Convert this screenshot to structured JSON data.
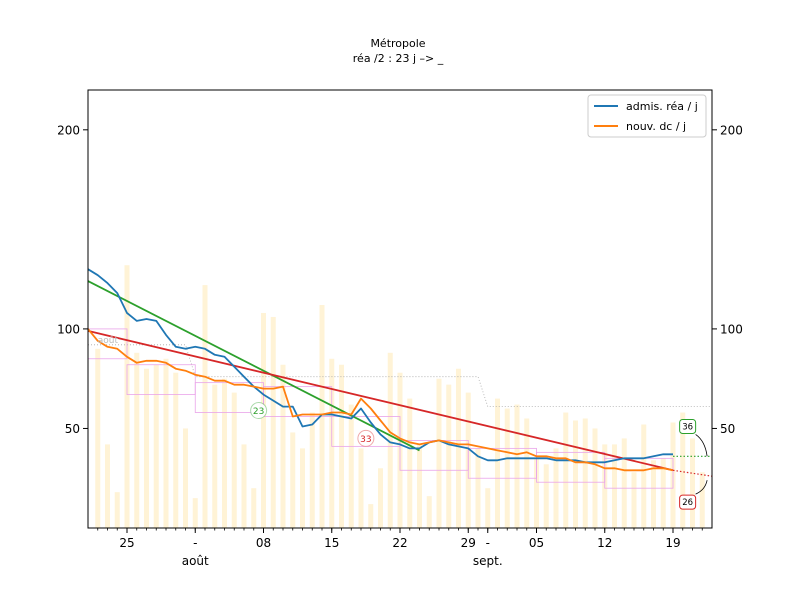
{
  "chart_data": {
    "type": "line",
    "title": "Métropole",
    "subtitle": "réa /2 : 23 j –> _",
    "xlabel": "",
    "ylabel": "",
    "x_range": [
      -17,
      47
    ],
    "ylim": [
      0,
      220
    ],
    "x_ticks": [
      {
        "x": -13,
        "label": "25"
      },
      {
        "x": -6,
        "label": "-"
      },
      {
        "x": 1,
        "label": "08"
      },
      {
        "x": 8,
        "label": "15"
      },
      {
        "x": 15,
        "label": "22"
      },
      {
        "x": 22,
        "label": "29"
      },
      {
        "x": 24,
        "label": "-"
      },
      {
        "x": 29,
        "label": "05"
      },
      {
        "x": 36,
        "label": "12"
      },
      {
        "x": 43,
        "label": "19"
      }
    ],
    "month_labels": [
      {
        "x": -6,
        "label": "août"
      },
      {
        "x": 24,
        "label": "sept."
      }
    ],
    "y_ticks": [
      {
        "y": 50,
        "label": "50"
      },
      {
        "y": 100,
        "label": "100"
      },
      {
        "y": 200,
        "label": "200"
      }
    ],
    "legend": {
      "position": "top-right",
      "entries": [
        {
          "label": "admis. réa / j",
          "color": "#1f77b4"
        },
        {
          "label": "nouv. dc / j",
          "color": "#ff7f0e"
        }
      ]
    },
    "bars": {
      "color": "#fff3d6",
      "x": [
        -16,
        -15,
        -14,
        -13,
        -12,
        -11,
        -10,
        -9,
        -8,
        -7,
        -6,
        -5,
        -4,
        -3,
        -2,
        -1,
        0,
        1,
        2,
        3,
        4,
        5,
        6,
        7,
        8,
        9,
        10,
        11,
        12,
        13,
        14,
        15,
        16,
        17,
        18,
        19,
        20,
        21,
        22,
        23,
        24,
        25,
        26,
        27,
        28,
        29,
        30,
        31,
        32,
        33,
        34,
        35,
        36,
        37,
        38,
        39,
        40,
        41,
        42,
        43,
        44,
        45,
        46
      ],
      "values": [
        90,
        42,
        18,
        132,
        88,
        80,
        82,
        85,
        78,
        50,
        15,
        122,
        72,
        75,
        68,
        42,
        20,
        108,
        106,
        82,
        48,
        40,
        58,
        112,
        85,
        82,
        62,
        40,
        12,
        30,
        88,
        78,
        65,
        42,
        16,
        75,
        72,
        80,
        68,
        40,
        20,
        65,
        60,
        62,
        55,
        35,
        32,
        40,
        58,
        54,
        55,
        50,
        42,
        42,
        45,
        28,
        52,
        34,
        35,
        53,
        58,
        45,
        28
      ]
    },
    "series": [
      {
        "name": "admis. réa / j",
        "color": "#1f77b4",
        "x": [
          -17,
          -16,
          -15,
          -14,
          -13,
          -12,
          -11,
          -10,
          -9,
          -8,
          -7,
          -6,
          -5,
          -4,
          -3,
          -2,
          -1,
          0,
          1,
          2,
          3,
          4,
          5,
          6,
          7,
          8,
          9,
          10,
          11,
          12,
          13,
          14,
          15,
          16,
          17,
          18,
          19,
          20,
          21,
          22,
          23,
          24,
          25,
          26,
          27,
          28,
          29,
          30,
          31,
          32,
          33,
          34,
          35,
          36,
          37,
          38,
          39,
          40,
          41,
          42,
          43
        ],
        "values": [
          130,
          127,
          123,
          118,
          108,
          104,
          105,
          104,
          97,
          91,
          90,
          91,
          90,
          87,
          86,
          81,
          76,
          71,
          67,
          64,
          61,
          61,
          51,
          52,
          57,
          57,
          56,
          55,
          60,
          53,
          47,
          43,
          42,
          40,
          40,
          43,
          44,
          42,
          41,
          40,
          36,
          34,
          34,
          35,
          35,
          35,
          35,
          35,
          34,
          34,
          34,
          33,
          33,
          33,
          34,
          35,
          35,
          35,
          36,
          37,
          37
        ]
      },
      {
        "name": "nouv. dc / j",
        "color": "#ff7f0e",
        "x": [
          -17,
          -16,
          -15,
          -14,
          -13,
          -12,
          -11,
          -10,
          -9,
          -8,
          -7,
          -6,
          -5,
          -4,
          -3,
          -2,
          -1,
          0,
          1,
          2,
          3,
          4,
          5,
          6,
          7,
          8,
          9,
          10,
          11,
          12,
          13,
          14,
          15,
          16,
          17,
          18,
          19,
          20,
          21,
          22,
          23,
          24,
          25,
          26,
          27,
          28,
          29,
          30,
          31,
          32,
          33,
          34,
          35,
          36,
          37,
          38,
          39,
          40,
          41,
          42,
          43
        ],
        "values": [
          100,
          94,
          91,
          90,
          86,
          83,
          84,
          84,
          83,
          80,
          79,
          77,
          76,
          74,
          74,
          72,
          72,
          71,
          70,
          70,
          71,
          56,
          57,
          57,
          57,
          58,
          58,
          57,
          65,
          60,
          54,
          48,
          45,
          43,
          42,
          43,
          44,
          43,
          42,
          42,
          41,
          40,
          39,
          38,
          37,
          38,
          36,
          36,
          35,
          35,
          33,
          33,
          32,
          30,
          30,
          29,
          29,
          29,
          30,
          30,
          29
        ]
      }
    ],
    "trend_lines": [
      {
        "name": "green fit",
        "color": "#2ca02c",
        "x": [
          -17,
          17
        ],
        "values": [
          124,
          39
        ]
      },
      {
        "name": "red fit",
        "color": "#d62728",
        "x": [
          -17,
          43
        ],
        "values": [
          99,
          29
        ]
      },
      {
        "name": "green extension",
        "color": "#2ca02c",
        "style": "dotted",
        "x": [
          43,
          47
        ],
        "values": [
          36,
          36
        ]
      },
      {
        "name": "red extension",
        "color": "#d62728",
        "style": "dotted",
        "x": [
          43,
          47
        ],
        "values": [
          29,
          26
        ]
      }
    ],
    "reference_lines": {
      "color": "#aaaaaa",
      "style": "dotted",
      "x": [
        -17,
        -7,
        -6,
        23,
        24,
        47
      ],
      "values": [
        92,
        92,
        76,
        76,
        61,
        61
      ]
    },
    "weekly_boxes": {
      "color": "#e9a3e9",
      "items": [
        {
          "x0": -17,
          "x1": -13,
          "value": 100
        },
        {
          "x0": -13,
          "x1": -6,
          "value": 82
        },
        {
          "x0": -6,
          "x1": 1,
          "value": 73
        },
        {
          "x0": 1,
          "x1": 8,
          "value": 71
        },
        {
          "x0": 8,
          "x1": 15,
          "value": 56
        },
        {
          "x0": 15,
          "x1": 22,
          "value": 44
        },
        {
          "x0": 22,
          "x1": 29,
          "value": 40
        },
        {
          "x0": 29,
          "x1": 36,
          "value": 38
        },
        {
          "x0": 36,
          "x1": 43,
          "value": 35
        }
      ]
    },
    "annotations": [
      {
        "label": "août",
        "x": -16,
        "value": 93,
        "kind": "faint-text",
        "color": "#bbbbbb"
      },
      {
        "label": "23",
        "x": 0.5,
        "value": 59,
        "kind": "circle",
        "color": "#2ca02c"
      },
      {
        "label": "33",
        "x": 11.5,
        "value": 45,
        "kind": "circle",
        "color": "#d62728"
      },
      {
        "label": "36",
        "x": 44.5,
        "value": 51,
        "kind": "box",
        "color": "#2ca02c",
        "arrow_to": [
          46.5,
          36
        ]
      },
      {
        "label": "26",
        "x": 44.5,
        "value": 13,
        "kind": "box",
        "color": "#d62728",
        "arrow_to": [
          46.5,
          24
        ]
      }
    ]
  }
}
